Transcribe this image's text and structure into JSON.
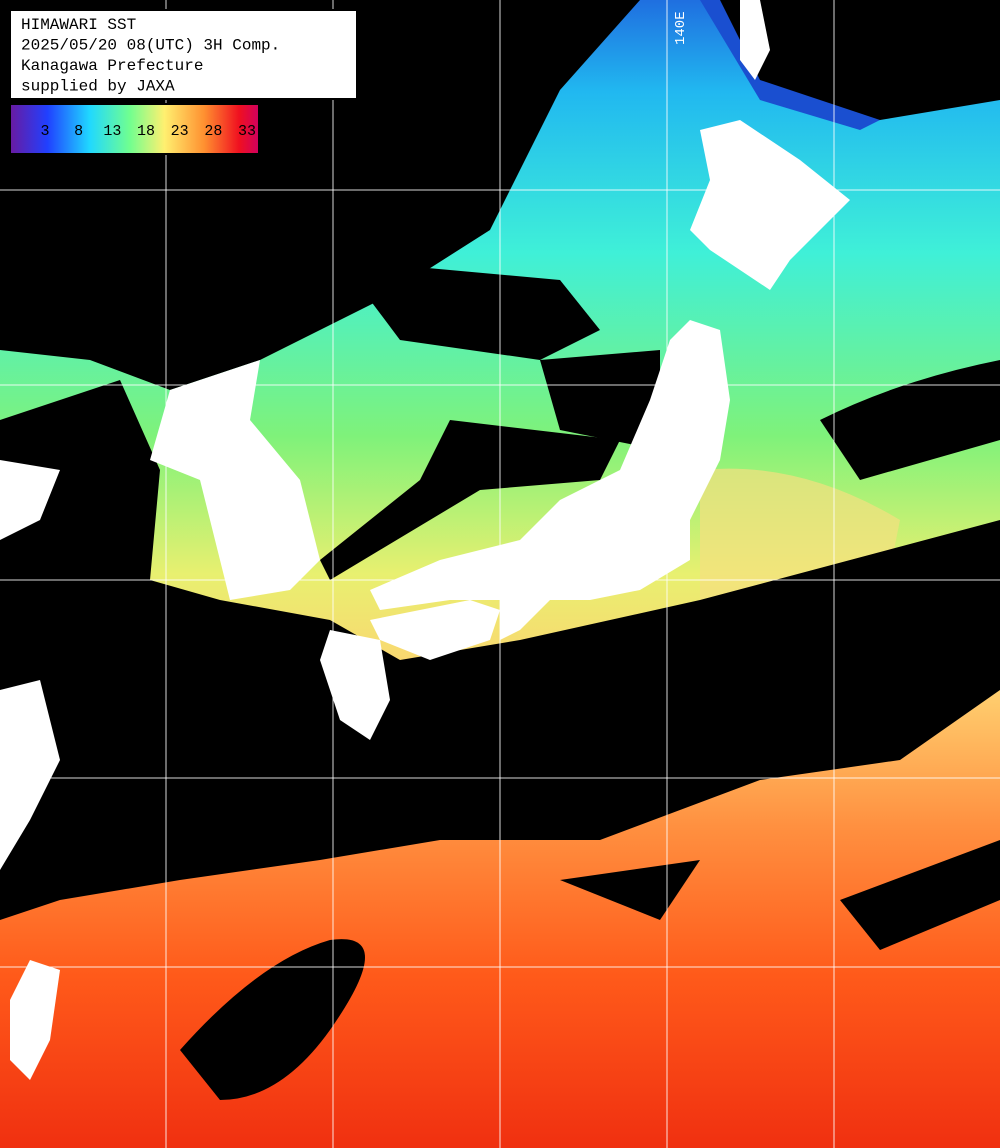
{
  "header": {
    "lines": [
      "HIMAWARI SST",
      "2025/05/20 08(UTC) 3H Comp.",
      "Kanagawa Prefecture",
      "supplied by JAXA"
    ]
  },
  "colorbar": {
    "labels": [
      3,
      8,
      13,
      18,
      23,
      28,
      33
    ]
  },
  "grid_labels": [
    "140E"
  ]
}
